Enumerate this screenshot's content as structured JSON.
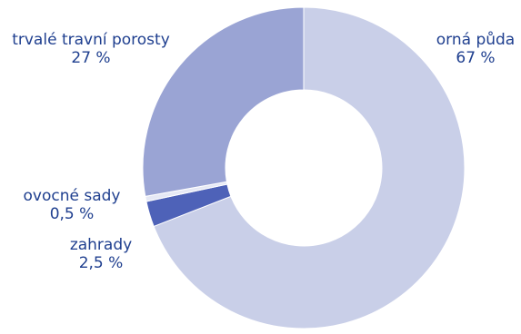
{
  "chart_data": {
    "type": "pie",
    "variant": "donut",
    "title": "",
    "slices": [
      {
        "label": "orná půda",
        "display_value": "67 %",
        "value": 67,
        "color": "#c9cfe8"
      },
      {
        "label": "zahrady",
        "display_value": "2,5 %",
        "value": 2.5,
        "color": "#4e62b8"
      },
      {
        "label": "ovocné sady",
        "display_value": "0,5 %",
        "value": 0.5,
        "color": "#e6e9f5"
      },
      {
        "label": "trvalé travní porosty",
        "display_value": "27 %",
        "value": 27,
        "color": "#9aa4d4"
      }
    ],
    "label_color": "#1f3f8f"
  }
}
